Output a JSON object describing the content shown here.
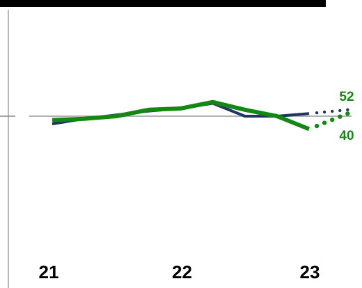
{
  "chart_data": {
    "type": "line",
    "x": [
      2021.0,
      2021.25,
      2021.5,
      2021.75,
      2022.0,
      2022.25,
      2022.5,
      2022.75,
      2023.0
    ],
    "categories": [
      "21",
      "22",
      "23"
    ],
    "ylim": [
      0,
      100
    ],
    "reference_line": 50,
    "series": [
      {
        "id": "navy",
        "color": "#1f3566",
        "values": [
          44,
          48,
          51,
          54,
          56,
          60,
          50,
          50,
          52
        ],
        "projection": {
          "x": [
            2023.0,
            2023.3
          ],
          "values": [
            52,
            55
          ],
          "style": "dotted"
        }
      },
      {
        "id": "green",
        "color": "#138913",
        "values": [
          47,
          48,
          50,
          55,
          56,
          61,
          55,
          50,
          40
        ],
        "projection": {
          "x": [
            2023.0,
            2023.3
          ],
          "values": [
            40,
            52
          ],
          "style": "dotted"
        },
        "end_labels": [
          "52",
          "40"
        ]
      }
    ],
    "grid": false,
    "legend": "none"
  }
}
